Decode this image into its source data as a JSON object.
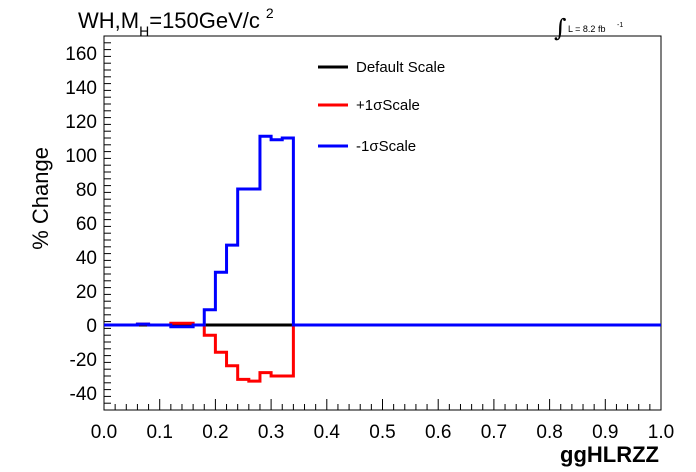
{
  "chart_data": {
    "type": "line",
    "title": {
      "prefix": "WH,M",
      "sub": "H",
      "mid": "=150GeV/c",
      "sup": "2"
    },
    "lumi": {
      "symbol": "∫",
      "text": "L = 8.2 fb",
      "sup": "-1"
    },
    "xlabel": "ggHLRZZ",
    "ylabel": "% Change",
    "xlim": [
      0,
      1
    ],
    "ylim": [
      -50,
      170
    ],
    "xticks": [
      "0.0",
      "0.1",
      "0.2",
      "0.3",
      "0.4",
      "0.5",
      "0.6",
      "0.7",
      "0.8",
      "0.9",
      "1.0"
    ],
    "yticks": [
      "-40",
      "-20",
      "0",
      "20",
      "40",
      "60",
      "80",
      "100",
      "120",
      "140",
      "160"
    ],
    "bin_edges": [
      0.0,
      0.02,
      0.04,
      0.06,
      0.08,
      0.1,
      0.12,
      0.14,
      0.16,
      0.18,
      0.2,
      0.22,
      0.24,
      0.26,
      0.28,
      0.3,
      0.32,
      0.34,
      0.36,
      0.38,
      0.4,
      0.42,
      0.44,
      0.46,
      0.48,
      0.5,
      0.52,
      0.54,
      0.56,
      0.58,
      0.6,
      0.62,
      0.64,
      0.66,
      0.68,
      0.7,
      0.72,
      0.74,
      0.76,
      0.78,
      0.8,
      0.82,
      0.84,
      0.86,
      0.88,
      0.9,
      0.92,
      0.94,
      0.96,
      0.98,
      1.0
    ],
    "series": [
      {
        "name": "Default Scale",
        "color": "#000000",
        "values": [
          0,
          0,
          0,
          0,
          0,
          0,
          0,
          0,
          0,
          0,
          0,
          0,
          0,
          0,
          0,
          0,
          0,
          0,
          0,
          0,
          0,
          0,
          0,
          0,
          0,
          0,
          0,
          0,
          0,
          0,
          0,
          0,
          0,
          0,
          0,
          0,
          0,
          0,
          0,
          0,
          0,
          0,
          0,
          0,
          0,
          0,
          0,
          0,
          0,
          0
        ]
      },
      {
        "name": "+1σScale",
        "color": "#ff0000",
        "values": [
          0,
          0,
          0,
          0.5,
          0,
          0,
          1,
          1,
          0,
          -6,
          -16,
          -24,
          -32,
          -33,
          -28,
          -30,
          -30,
          0,
          0,
          0,
          0,
          0,
          0,
          0,
          0,
          0,
          0,
          0,
          0,
          0,
          0,
          0,
          0,
          0,
          0,
          0,
          0,
          0,
          0,
          0,
          0,
          0,
          0,
          0,
          0,
          0,
          0,
          0,
          0,
          0
        ]
      },
      {
        "name": "-1σScale",
        "color": "#0000ff",
        "values": [
          0,
          0,
          0,
          0.5,
          0,
          0,
          -1,
          -1,
          0,
          9,
          31,
          47,
          80,
          80,
          111,
          109,
          110,
          0,
          0,
          0,
          0,
          0,
          0,
          0,
          0,
          0,
          0,
          0,
          0,
          0,
          0,
          0,
          0,
          0,
          0,
          0,
          0,
          0,
          0,
          0,
          0,
          0,
          0,
          0,
          0,
          0,
          0,
          0,
          0,
          0
        ]
      }
    ],
    "legend_position": "top-center",
    "grid": false
  }
}
